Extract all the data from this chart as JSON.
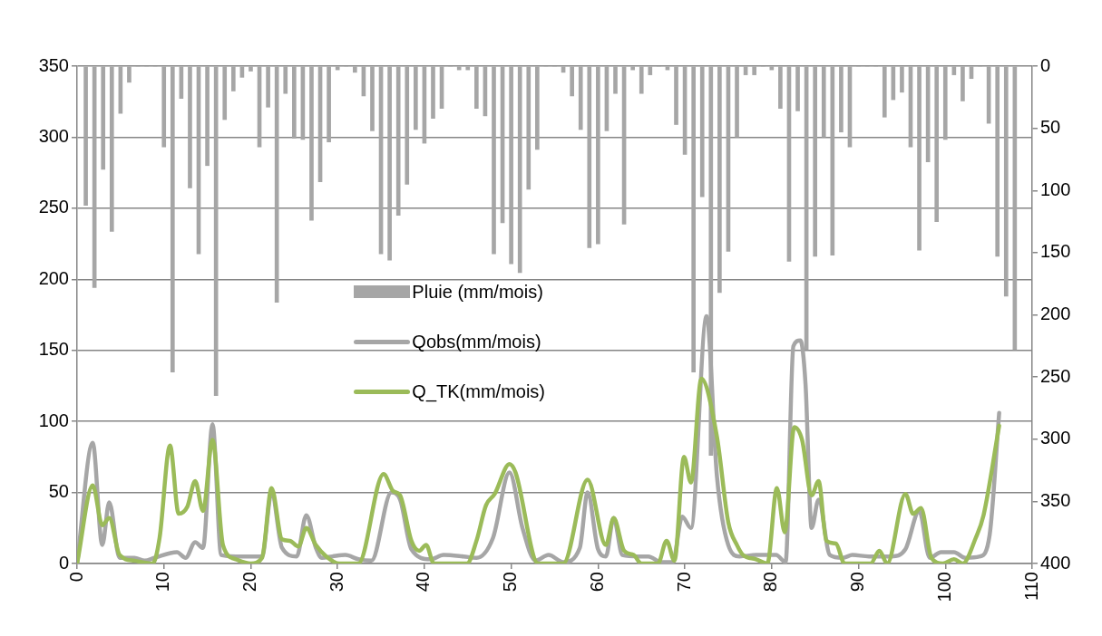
{
  "chart_data": {
    "type": "line",
    "xlim": [
      0,
      110
    ],
    "xticks": [
      0,
      10,
      20,
      30,
      40,
      50,
      60,
      70,
      80,
      90,
      100,
      110
    ],
    "ylim": [
      0,
      350
    ],
    "yticks": [
      0,
      50,
      100,
      150,
      200,
      250,
      300,
      350
    ],
    "y2lim": [
      400,
      0
    ],
    "y2ticks": [
      0,
      50,
      100,
      150,
      200,
      250,
      300,
      350,
      400
    ],
    "grid": "y",
    "legend": "center",
    "marker": "none",
    "line_style": "solid",
    "series": [
      {
        "type": "bar",
        "axis": "y2",
        "name": "Pluie (mm/mois)",
        "color": "#a6a6a6",
        "x": [
          1,
          2,
          3,
          4,
          5,
          6,
          7,
          8,
          9,
          10,
          11,
          12,
          13,
          14,
          15,
          16,
          17,
          18,
          19,
          20,
          21,
          22,
          23,
          24,
          25,
          26,
          27,
          28,
          29,
          30,
          31,
          32,
          33,
          34,
          35,
          36,
          37,
          38,
          39,
          40,
          41,
          42,
          43,
          44,
          45,
          46,
          47,
          48,
          49,
          50,
          51,
          52,
          53,
          54,
          55,
          56,
          57,
          58,
          59,
          60,
          61,
          62,
          63,
          64,
          65,
          66,
          67,
          68,
          69,
          70,
          71,
          72,
          73,
          74,
          75,
          76,
          77,
          78,
          79,
          80,
          81,
          82,
          83,
          84,
          85,
          86,
          87,
          88,
          89,
          90,
          91,
          92,
          93,
          94,
          95,
          96,
          97,
          98,
          99,
          100,
          101,
          102,
          103,
          104,
          105,
          106,
          107,
          108
        ],
        "values": [
          112,
          178,
          83,
          133,
          38,
          13,
          0,
          0,
          0,
          65,
          246,
          26,
          98,
          151,
          80,
          265,
          43,
          20,
          9,
          4,
          65,
          33,
          190,
          22,
          58,
          59,
          124,
          93,
          61,
          3,
          0,
          5,
          24,
          52,
          151,
          156,
          120,
          95,
          51,
          62,
          42,
          34,
          0,
          3,
          3,
          34,
          40,
          151,
          126,
          159,
          166,
          99,
          67,
          0,
          0,
          5,
          24,
          51,
          146,
          143,
          52,
          22,
          127,
          3,
          22,
          7,
          0,
          3,
          47,
          71,
          246,
          105,
          313,
          182,
          149,
          57,
          7,
          7,
          0,
          3,
          34,
          157,
          36,
          228,
          153,
          57,
          152,
          53,
          65,
          0,
          0,
          0,
          41,
          27,
          21,
          65,
          148,
          77,
          125,
          59,
          7,
          28,
          10,
          0,
          46,
          153,
          185,
          228
        ]
      },
      {
        "name": "Qobs(mm/mois)",
        "color": "#a6a6a6",
        "x": [
          0,
          1.8,
          2.9,
          3.7,
          4.9,
          6.6,
          7.8,
          8.9,
          11.5,
          12.5,
          13.6,
          14.5,
          15.6,
          16.6,
          18.3,
          20.2,
          21.3,
          22.4,
          23.6,
          25.3,
          26.4,
          27.5,
          28.2,
          29.4,
          30.9,
          32.4,
          33.9,
          36.2,
          37.2,
          38.5,
          40.7,
          42.2,
          44.5,
          46,
          47.9,
          49.8,
          51.3,
          52.8,
          54.3,
          56,
          57.9,
          58.8,
          60,
          60.9,
          61.8,
          62.8,
          64.7,
          65.8,
          67.3,
          68.6,
          69.7,
          70.7,
          72.5,
          73.7,
          75,
          76.3,
          78.2,
          80.5,
          81.6,
          82.5,
          83.3,
          83.9,
          84.6,
          85.4,
          86.7,
          88.2,
          89.3,
          91.2,
          93.8,
          95.4,
          97,
          98.2,
          99.5,
          101,
          102.3,
          104,
          105.1,
          106.2
        ],
        "values": [
          0,
          85,
          13,
          43,
          4,
          4,
          2,
          4,
          8,
          4,
          15,
          11,
          98,
          6,
          5,
          5,
          5,
          50,
          11,
          5,
          34,
          11,
          4,
          5,
          6,
          3,
          2,
          50,
          45,
          10,
          3,
          6,
          5,
          4,
          18,
          64,
          25,
          2,
          6,
          1,
          11,
          50,
          10,
          5,
          32,
          6,
          5,
          5,
          1,
          1,
          33,
          25,
          174,
          61,
          13,
          5,
          6,
          6,
          1,
          153,
          157,
          126,
          25,
          45,
          6,
          4,
          6,
          5,
          5,
          10,
          37,
          4,
          8,
          8,
          4,
          5,
          20,
          106
        ]
      },
      {
        "name": "Q_TK(mm/mois)",
        "color": "#9bbb59",
        "x": [
          0,
          1.8,
          2.9,
          3.7,
          4.9,
          6.6,
          8.7,
          9.5,
          10.7,
          11.7,
          12.7,
          13.6,
          14.5,
          15.6,
          16.8,
          18.3,
          20,
          21.3,
          22.4,
          23.6,
          24.5,
          25.5,
          26.4,
          27.5,
          28.7,
          30.2,
          32.4,
          35.3,
          36.4,
          37.2,
          38.5,
          39.4,
          40.2,
          41.1,
          44.9,
          46,
          47.1,
          48.1,
          49.8,
          50.5,
          53.1,
          56,
          58.8,
          60.9,
          61.8,
          63,
          64.1,
          65,
          66.9,
          67.9,
          68.8,
          69.9,
          70.7,
          71.9,
          73.7,
          75,
          76,
          76.7,
          78.2,
          79.5,
          80.6,
          81.5,
          82.6,
          83.5,
          84.6,
          85.4,
          86.3,
          87.4,
          88.4,
          91.4,
          92.4,
          93.3,
          95.4,
          96.3,
          97.2,
          98.4,
          99.7,
          101,
          102,
          103.5,
          104.4,
          106.2
        ],
        "values": [
          0,
          55,
          27,
          32,
          6,
          2,
          0,
          18,
          83,
          35,
          40,
          58,
          37,
          87,
          13,
          3,
          0,
          4,
          53,
          17,
          16,
          12,
          25,
          13,
          5,
          0,
          0,
          63,
          51,
          48,
          16,
          9,
          13,
          0,
          0,
          16,
          41,
          49,
          70,
          64,
          0,
          0,
          59,
          13,
          32,
          9,
          6,
          0,
          0,
          16,
          2,
          75,
          57,
          130,
          89,
          29,
          13,
          6,
          3,
          0,
          53,
          22,
          96,
          87,
          48,
          58,
          16,
          14,
          0,
          0,
          9,
          0,
          49,
          35,
          39,
          4,
          0,
          3,
          0,
          18,
          34,
          97
        ]
      }
    ]
  }
}
